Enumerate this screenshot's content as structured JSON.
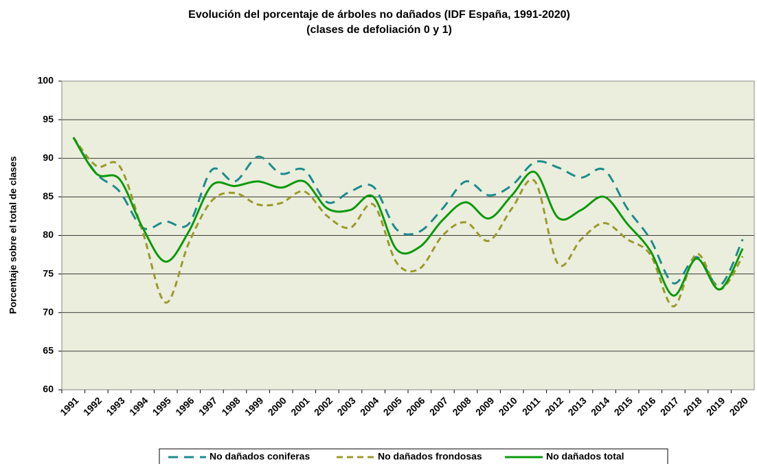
{
  "chart_data": {
    "type": "line",
    "title": "Evolución del porcentaje de árboles no dañados (IDF España, 1991-2020)",
    "subtitle": "(clases de defoliación 0 y 1)",
    "y_label": "Porcentaje sobre el total de clases",
    "categories": [
      "1991",
      "1992",
      "1993",
      "1994",
      "1995",
      "1996",
      "1997",
      "1998",
      "1999",
      "2000",
      "2001",
      "2002",
      "2003",
      "2004",
      "2005",
      "2006",
      "2007",
      "2008",
      "2009",
      "2010",
      "2011",
      "2012",
      "2013",
      "2014",
      "2015",
      "2016",
      "2017",
      "2018",
      "2019",
      "2020"
    ],
    "series": [
      {
        "name": "No dañados  coniferas",
        "color": "#1a8c8c",
        "dash": "long",
        "values": [
          92.7,
          88,
          85.7,
          81,
          81.8,
          81.5,
          88.5,
          87,
          90.2,
          88,
          88.5,
          84.3,
          85.7,
          86.3,
          80.8,
          80.5,
          83.5,
          87,
          85.2,
          86.5,
          89.5,
          88.8,
          87.5,
          88.5,
          83.5,
          79.5,
          73.8,
          77.2,
          73.5,
          79.5
        ]
      },
      {
        "name": "No dañados  frondosas",
        "color": "#9a9a2a",
        "dash": "short",
        "values": [
          92.7,
          89,
          89,
          80.5,
          71.3,
          79,
          84.5,
          85.5,
          84,
          84.2,
          85.7,
          82.5,
          81,
          84,
          76.5,
          75.7,
          80,
          81.7,
          79.3,
          83.5,
          87,
          76.3,
          79.5,
          81.6,
          79.5,
          77.5,
          70.8,
          77.6,
          73,
          77.3
        ]
      },
      {
        "name": "No dañados  total",
        "color": "#0a9a0a",
        "dash": "solid",
        "values": [
          92.7,
          88,
          87.3,
          81,
          76.6,
          80.5,
          86.5,
          86.4,
          87,
          86.2,
          87,
          83.5,
          83.3,
          85,
          78.2,
          78.5,
          82,
          84.3,
          82.2,
          85.2,
          88.2,
          82.3,
          83.3,
          85,
          81.5,
          78,
          72.2,
          77,
          73,
          78.3
        ]
      }
    ],
    "ylim": [
      60,
      100
    ],
    "yticks": [
      60,
      65,
      70,
      75,
      80,
      85,
      90,
      95,
      100
    ],
    "grid": true,
    "legend": "bottom"
  }
}
